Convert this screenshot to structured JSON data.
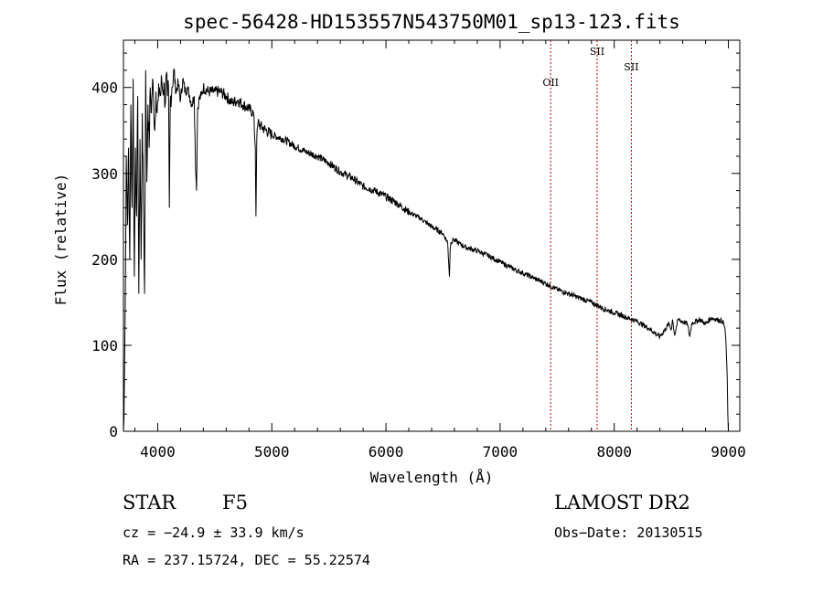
{
  "chart_data": {
    "type": "line",
    "title": "spec-56428-HD153557N543750M01_sp13-123.fits",
    "xlabel": "Wavelength (Å)",
    "ylabel": "Flux (relative)",
    "xlim": [
      3700,
      9100
    ],
    "ylim": [
      0,
      455
    ],
    "xticks": [
      4000,
      5000,
      6000,
      7000,
      8000,
      9000
    ],
    "yticks": [
      0,
      100,
      200,
      300,
      400
    ],
    "grid": false,
    "series": [
      {
        "name": "spectrum",
        "x": [
          3700,
          3705,
          3715,
          3725,
          3735,
          3745,
          3755,
          3765,
          3775,
          3785,
          3795,
          3805,
          3815,
          3825,
          3835,
          3845,
          3855,
          3865,
          3875,
          3885,
          3895,
          3905,
          3915,
          3925,
          3935,
          3945,
          3955,
          3965,
          3975,
          3985,
          3995,
          4005,
          4015,
          4025,
          4035,
          4045,
          4055,
          4065,
          4075,
          4085,
          4095,
          4102,
          4110,
          4125,
          4140,
          4160,
          4180,
          4200,
          4220,
          4240,
          4260,
          4280,
          4300,
          4320,
          4330,
          4340,
          4350,
          4360,
          4380,
          4400,
          4450,
          4500,
          4550,
          4600,
          4650,
          4700,
          4750,
          4800,
          4840,
          4855,
          4861,
          4868,
          4880,
          4900,
          4950,
          5000,
          5100,
          5200,
          5300,
          5400,
          5500,
          5600,
          5700,
          5800,
          5900,
          6000,
          6100,
          6200,
          6300,
          6400,
          6500,
          6540,
          6556,
          6563,
          6570,
          6590,
          6650,
          6700,
          6800,
          6900,
          7000,
          7100,
          7200,
          7300,
          7400,
          7500,
          7600,
          7700,
          7800,
          7900,
          8000,
          8100,
          8200,
          8300,
          8400,
          8480,
          8498,
          8510,
          8530,
          8542,
          8560,
          8640,
          8662,
          8680,
          8750,
          8800,
          8850,
          8900,
          8950,
          8970,
          8980,
          8990,
          8995,
          9000
        ],
        "y": [
          0,
          15,
          140,
          320,
          240,
          330,
          200,
          380,
          260,
          410,
          180,
          330,
          250,
          390,
          160,
          340,
          200,
          370,
          270,
          160,
          420,
          290,
          380,
          330,
          400,
          370,
          410,
          380,
          350,
          395,
          370,
          385,
          400,
          390,
          410,
          395,
          405,
          380,
          415,
          390,
          400,
          260,
          385,
          400,
          420,
          395,
          405,
          385,
          410,
          395,
          400,
          390,
          380,
          390,
          320,
          280,
          375,
          385,
          390,
          400,
          395,
          395,
          395,
          390,
          382,
          385,
          380,
          375,
          370,
          330,
          250,
          340,
          360,
          355,
          350,
          345,
          340,
          332,
          325,
          320,
          312,
          302,
          295,
          285,
          280,
          273,
          265,
          255,
          248,
          238,
          230,
          220,
          180,
          212,
          220,
          223,
          218,
          214,
          210,
          204,
          197,
          190,
          184,
          178,
          172,
          165,
          160,
          155,
          150,
          143,
          138,
          133,
          128,
          120,
          110,
          125,
          118,
          130,
          112,
          120,
          130,
          125,
          110,
          126,
          130,
          125,
          132,
          130,
          128,
          120,
          100,
          60,
          20,
          0
        ]
      }
    ],
    "annotations": [
      {
        "label": "OII",
        "x": 7443
      },
      {
        "label": "SII",
        "x": 7850
      },
      {
        "label": "SII",
        "x": 8150
      }
    ]
  },
  "info": {
    "object_class": "STAR",
    "subclass": "F5",
    "survey": "LAMOST DR2",
    "redshift_text": "cz = −24.9 ± 33.9 km/s",
    "obs_date_text": "Obs−Date: 20130515",
    "coords_text": "RA = 237.15724, DEC =  55.22574"
  },
  "colors": {
    "spectrum": "#000000",
    "emission_line": "#c00000",
    "axis": "#000000",
    "background": "#ffffff"
  }
}
